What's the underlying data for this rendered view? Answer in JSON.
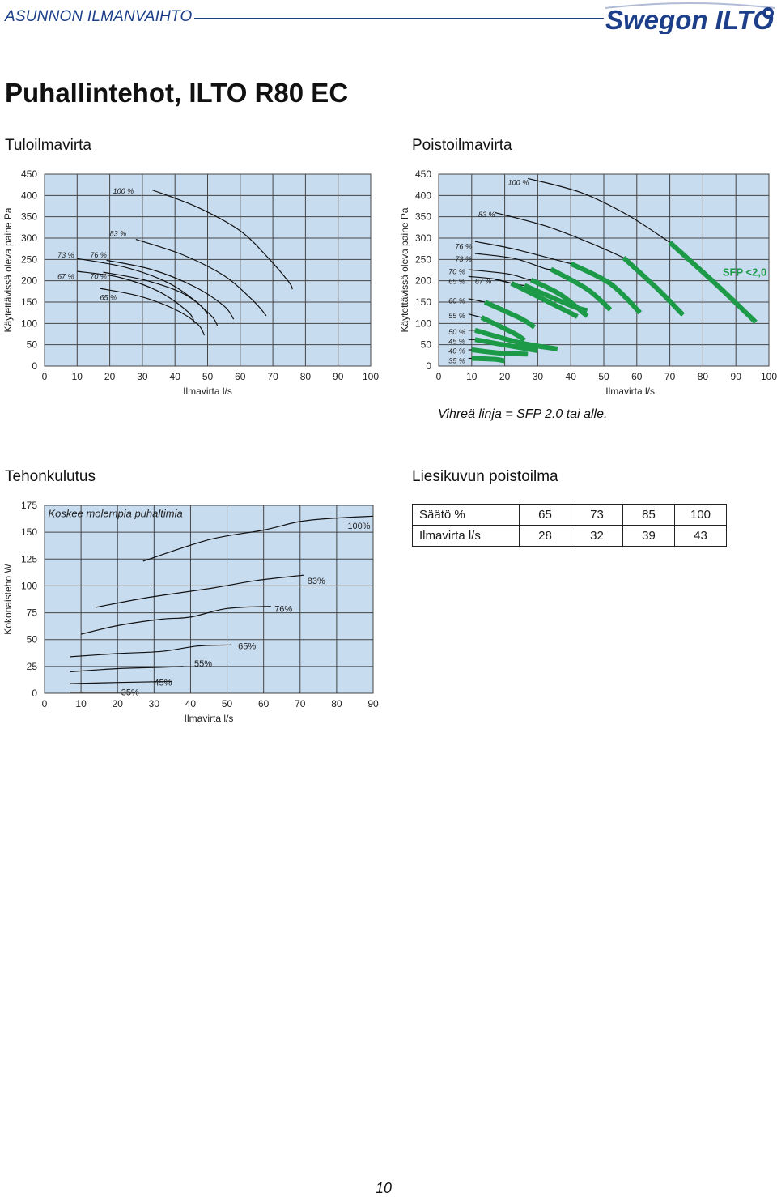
{
  "header": {
    "section": "ASUNNON ILMANVAIHTO",
    "brand": "Swegon ILTO"
  },
  "page_title": "Puhallintehot, ILTO R80 EC",
  "sections": {
    "supply": "Tuloilmavirta",
    "exhaust": "Poistoilmavirta",
    "power": "Tehonkulutus",
    "hood": "Liesikuvun poistoilma"
  },
  "note": "Vihreä linja = SFP 2.0 tai alle.",
  "page_number": "10",
  "colors": {
    "grid_bg": "#c8dcf0",
    "sfp_green": "#1d9a48",
    "brand_blue": "#1d3f8a"
  },
  "chart_data": [
    {
      "id": "supply",
      "type": "line",
      "title": "Tuloilmavirta",
      "xlabel": "Ilmavirta l/s",
      "ylabel": "Käytettävissä oleva paine Pa",
      "xlim": [
        0,
        100
      ],
      "ylim": [
        0,
        450
      ],
      "xticks": [
        0,
        10,
        20,
        30,
        40,
        50,
        60,
        70,
        80,
        90,
        100
      ],
      "yticks": [
        0,
        50,
        100,
        150,
        200,
        250,
        300,
        350,
        400,
        450
      ],
      "grid": true,
      "series": [
        {
          "name": "100 %",
          "label": {
            "text": "100 %",
            "x": 21,
            "y": 412
          },
          "points": [
            [
              33,
              413
            ],
            [
              47,
              372
            ],
            [
              60,
              317
            ],
            [
              69,
              250
            ],
            [
              75,
              196
            ],
            [
              76,
              180
            ]
          ]
        },
        {
          "name": "83 %",
          "label": {
            "text": "83 %",
            "x": 20,
            "y": 312
          },
          "points": [
            [
              28,
              297
            ],
            [
              42,
              262
            ],
            [
              55,
              212
            ],
            [
              64,
              153
            ],
            [
              68,
              118
            ]
          ]
        },
        {
          "name": "76 %",
          "label": {
            "text": "76 %",
            "x": 14,
            "y": 262
          },
          "points": [
            [
              19,
              248
            ],
            [
              33,
              226
            ],
            [
              46,
              186
            ],
            [
              55,
              141
            ],
            [
              58,
              110
            ]
          ]
        },
        {
          "name": "73 %",
          "label": {
            "text": "73 %",
            "x": 4,
            "y": 262
          },
          "points": [
            [
              10,
              252
            ],
            [
              25,
              231
            ],
            [
              38,
              195
            ],
            [
              47,
              148
            ],
            [
              50,
              122
            ]
          ]
        },
        {
          "name": "70 %",
          "label": {
            "text": "70 %",
            "x": 14,
            "y": 212
          },
          "points": [
            [
              18,
              220
            ],
            [
              31,
              201
            ],
            [
              43,
              168
            ],
            [
              51,
              119
            ],
            [
              53,
              95
            ]
          ]
        },
        {
          "name": "67 %",
          "label": {
            "text": "67 %",
            "x": 4,
            "y": 212
          },
          "points": [
            [
              10,
              222
            ],
            [
              23,
              208
            ],
            [
              35,
              175
            ],
            [
              44,
              127
            ],
            [
              46,
              101
            ]
          ]
        },
        {
          "name": "65 %",
          "label": {
            "text": "65 %",
            "x": 17,
            "y": 162
          },
          "points": [
            [
              17,
              182
            ],
            [
              29,
              164
            ],
            [
              40,
              133
            ],
            [
              47,
              98
            ],
            [
              49,
              72
            ]
          ]
        }
      ]
    },
    {
      "id": "exhaust",
      "type": "line",
      "title": "Poistoilmavirta",
      "xlabel": "Ilmavirta l/s",
      "ylabel": "Käytettävissä oleva paine Pa",
      "xlim": [
        0,
        100
      ],
      "ylim": [
        0,
        450
      ],
      "xticks": [
        0,
        10,
        20,
        30,
        40,
        50,
        60,
        70,
        80,
        90,
        100
      ],
      "yticks": [
        0,
        50,
        100,
        150,
        200,
        250,
        300,
        350,
        400,
        450
      ],
      "grid": true,
      "annotation": "SFP <2,0",
      "series": [
        {
          "name": "100 %",
          "label": {
            "text": "100 %",
            "x": 21,
            "y": 432
          },
          "points": [
            [
              27,
              440
            ],
            [
              43,
              407
            ],
            [
              57,
              355
            ],
            [
              70,
              290
            ]
          ],
          "sfp_points": [
            [
              70,
              290
            ],
            [
              84,
              192
            ],
            [
              96,
              103
            ]
          ]
        },
        {
          "name": "83 %",
          "label": {
            "text": "83 %",
            "x": 12,
            "y": 357
          },
          "points": [
            [
              17,
              360
            ],
            [
              33,
              327
            ],
            [
              47,
              285
            ],
            [
              56,
              254
            ]
          ],
          "sfp_points": [
            [
              56,
              254
            ],
            [
              66,
              183
            ],
            [
              74,
              120
            ]
          ]
        },
        {
          "name": "76 %",
          "label": {
            "text": "76 %",
            "x": 5,
            "y": 282
          },
          "points": [
            [
              11,
              292
            ],
            [
              23,
              274
            ],
            [
              38,
              244
            ],
            [
              40,
              240
            ]
          ],
          "sfp_points": [
            [
              40,
              240
            ],
            [
              52,
              193
            ],
            [
              61,
              125
            ]
          ]
        },
        {
          "name": "73 %",
          "label": {
            "text": "73 %",
            "x": 5,
            "y": 253
          },
          "points": [
            [
              11,
              264
            ],
            [
              23,
              252
            ],
            [
              32,
              229
            ],
            [
              34,
              227
            ]
          ],
          "sfp_points": [
            [
              34,
              227
            ],
            [
              45,
              180
            ],
            [
              52,
              132
            ]
          ]
        },
        {
          "name": "70 %",
          "label": {
            "text": "70 %",
            "x": 3,
            "y": 223
          },
          "points": [
            [
              9,
              226
            ],
            [
              21,
              216
            ],
            [
              27,
              203
            ],
            [
              28,
              202
            ]
          ],
          "sfp_points": [
            [
              28,
              202
            ],
            [
              37,
              167
            ],
            [
              45,
              117
            ]
          ]
        },
        {
          "name": "67 %",
          "label": {
            "text": "67 %",
            "x": 11,
            "y": 200
          },
          "points": [
            [
              17,
              203
            ],
            [
              24,
              191
            ],
            [
              26,
              189
            ]
          ],
          "sfp_points": [
            [
              26,
              189
            ],
            [
              40,
              142
            ],
            [
              45,
              130
            ]
          ]
        },
        {
          "name": "65 %",
          "label": {
            "text": "65 %",
            "x": 3,
            "y": 200
          },
          "points": [
            [
              9,
              210
            ],
            [
              17,
              204
            ],
            [
              22,
              194
            ]
          ],
          "sfp_points": [
            [
              22,
              194
            ],
            [
              38,
              132
            ],
            [
              42,
              116
            ]
          ]
        },
        {
          "name": "60 %",
          "label": {
            "text": "60 %",
            "x": 3,
            "y": 155
          },
          "points": [
            [
              9,
              158
            ],
            [
              14,
              150
            ]
          ],
          "sfp_points": [
            [
              14,
              150
            ],
            [
              25,
              111
            ],
            [
              29,
              91
            ]
          ]
        },
        {
          "name": "55 %",
          "label": {
            "text": "55 %",
            "x": 3,
            "y": 120
          },
          "points": [
            [
              9,
              122
            ],
            [
              13,
              114
            ]
          ],
          "sfp_points": [
            [
              13,
              114
            ],
            [
              23,
              76
            ],
            [
              26,
              60
            ]
          ]
        },
        {
          "name": "50 %",
          "label": {
            "text": "50 %",
            "x": 3,
            "y": 82
          },
          "points": [
            [
              9,
              84
            ],
            [
              11,
              84
            ]
          ],
          "sfp_points": [
            [
              11,
              84
            ],
            [
              25,
              54
            ],
            [
              36,
              40
            ]
          ]
        },
        {
          "name": "45 %",
          "label": {
            "text": "45 %",
            "x": 3,
            "y": 60
          },
          "points": [
            [
              9,
              62
            ],
            [
              11,
              62
            ]
          ],
          "sfp_points": [
            [
              11,
              62
            ],
            [
              21,
              48
            ],
            [
              30,
              36
            ]
          ]
        },
        {
          "name": "40 %",
          "label": {
            "text": "40 %",
            "x": 3,
            "y": 37
          },
          "points": [
            [
              9,
              38
            ],
            [
              10,
              38
            ]
          ],
          "sfp_points": [
            [
              10,
              38
            ],
            [
              19,
              30
            ],
            [
              27,
              28
            ]
          ]
        },
        {
          "name": "35 %",
          "label": {
            "text": "35 %",
            "x": 3,
            "y": 14
          },
          "points": [
            [
              9,
              18
            ],
            [
              10,
              18
            ]
          ],
          "sfp_points": [
            [
              10,
              18
            ],
            [
              17,
              16
            ],
            [
              20,
              12
            ]
          ]
        }
      ]
    },
    {
      "id": "power",
      "type": "line",
      "title": "Tehonkulutus",
      "annotation": "Koskee molempia puhaltimia",
      "xlabel": "Ilmavirta l/s",
      "ylabel": "Kokonaisteho W",
      "xlim": [
        0,
        90
      ],
      "ylim": [
        0,
        175
      ],
      "xticks": [
        0,
        10,
        20,
        30,
        40,
        50,
        60,
        70,
        80,
        90
      ],
      "yticks": [
        0,
        25,
        50,
        75,
        100,
        125,
        150,
        175
      ],
      "grid": true,
      "series": [
        {
          "name": "100%",
          "label": {
            "text": "100%",
            "x": 83,
            "y": 156
          },
          "points": [
            [
              27,
              123
            ],
            [
              45,
              143
            ],
            [
              60,
              152
            ],
            [
              70,
              160
            ],
            [
              79,
              163
            ],
            [
              90,
              165
            ]
          ]
        },
        {
          "name": "83%",
          "label": {
            "text": "83%",
            "x": 72,
            "y": 105
          },
          "points": [
            [
              14,
              80
            ],
            [
              28,
              89
            ],
            [
              46,
              98
            ],
            [
              58,
              105
            ],
            [
              71,
              110
            ]
          ]
        },
        {
          "name": "76%",
          "label": {
            "text": "76%",
            "x": 63,
            "y": 79
          },
          "points": [
            [
              10,
              55
            ],
            [
              20,
              63
            ],
            [
              32,
              69
            ],
            [
              40,
              71
            ],
            [
              50,
              79
            ],
            [
              62,
              81
            ]
          ]
        },
        {
          "name": "65%",
          "label": {
            "text": "65%",
            "x": 53,
            "y": 44
          },
          "points": [
            [
              7,
              34
            ],
            [
              20,
              37
            ],
            [
              32,
              39
            ],
            [
              42,
              44
            ],
            [
              51,
              45
            ]
          ]
        },
        {
          "name": "55%",
          "label": {
            "text": "55%",
            "x": 41,
            "y": 28
          },
          "points": [
            [
              7,
              20
            ],
            [
              20,
              23
            ],
            [
              30,
              24
            ],
            [
              38,
              25
            ]
          ]
        },
        {
          "name": "45%",
          "label": {
            "text": "45%",
            "x": 30,
            "y": 10
          },
          "points": [
            [
              7,
              9
            ],
            [
              20,
              10
            ],
            [
              35,
              11
            ]
          ]
        },
        {
          "name": "35%",
          "label": {
            "text": "35%",
            "x": 21,
            "y": 1
          },
          "points": [
            [
              7,
              1
            ],
            [
              16,
              1
            ],
            [
              24,
              1
            ]
          ]
        }
      ]
    }
  ],
  "hood_table": {
    "rows": [
      {
        "label": "Säätö %",
        "values": [
          "65",
          "73",
          "85",
          "100"
        ]
      },
      {
        "label": "Ilmavirta l/s",
        "values": [
          "28",
          "32",
          "39",
          "43"
        ]
      }
    ]
  }
}
